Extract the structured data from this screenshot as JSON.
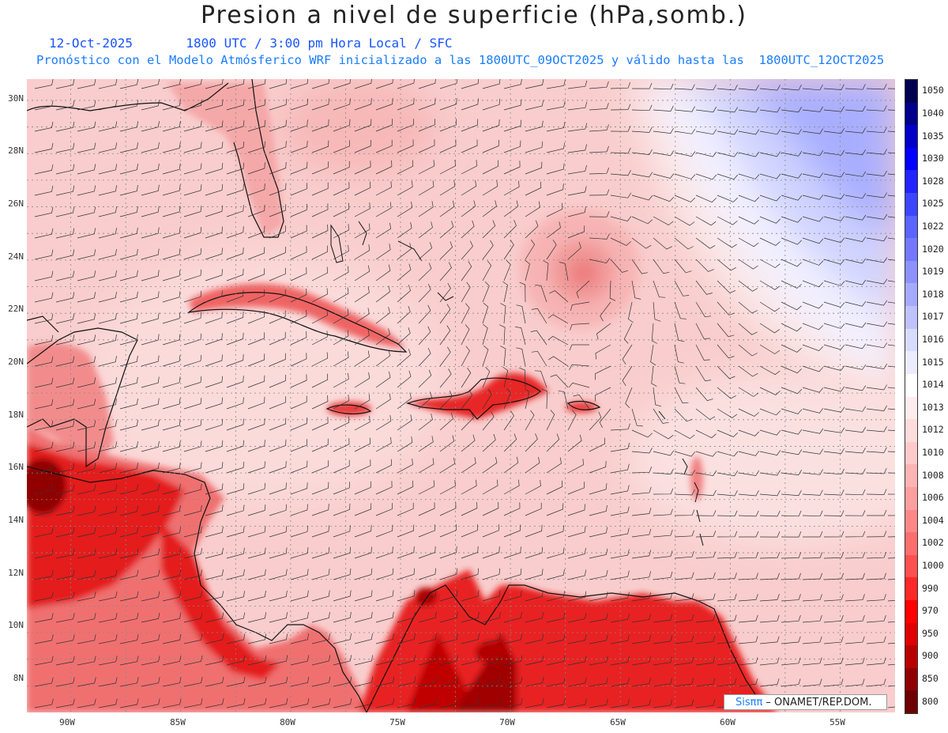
{
  "header": {
    "title": "Presion a nivel de superficie (hPa,somb.)",
    "date": "12-Oct-2025",
    "valid_time": "1800 UTC / 3:00 pm Hora Local / SFC",
    "subtitle": "Pronóstico con el Modelo Atmósferico WRF inicializado a las 1800UTC_09OCT2025 y válido hasta las  1800UTC_12OCT2025"
  },
  "map": {
    "lon_range": [
      -92,
      -52.5
    ],
    "lat_range": [
      7,
      30.8
    ],
    "lat_labels": [
      "30N",
      "28N",
      "26N",
      "24N",
      "22N",
      "20N",
      "18N",
      "16N",
      "14N",
      "12N",
      "10N",
      "8N"
    ],
    "lon_labels": [
      "90W",
      "85W",
      "80W",
      "75W",
      "70W",
      "65W",
      "60W",
      "55W"
    ],
    "low_center": {
      "lon": -66.6,
      "lat": 23.4
    },
    "colors": {
      "land_low": "#e00000",
      "ocean": "#f9cccc",
      "high": "#9aa2ff"
    }
  },
  "colorbar": {
    "levels": [
      "1050",
      "1040",
      "1035",
      "1030",
      "1028",
      "1025",
      "1022",
      "1020",
      "1019",
      "1018",
      "1017",
      "1016",
      "1015",
      "1014",
      "1013",
      "1012",
      "1010",
      "1008",
      "1006",
      "1004",
      "1002",
      "1000",
      "990",
      "970",
      "950",
      "900",
      "850",
      "800"
    ],
    "colors": [
      "#000050",
      "#00008c",
      "#0000c8",
      "#0000ff",
      "#2323ff",
      "#3c46ff",
      "#5a64ff",
      "#7378ff",
      "#8c91ff",
      "#a5aaff",
      "#bec3ff",
      "#d7dcff",
      "#ebedff",
      "#ffffff",
      "#ffecec",
      "#ffdcdc",
      "#ffcaca",
      "#ffb4b4",
      "#ff9e9e",
      "#ff8787",
      "#ff6e6e",
      "#ff5050",
      "#ff2828",
      "#ff0000",
      "#e00000",
      "#b80000",
      "#900000",
      "#6e0000"
    ]
  },
  "credit": {
    "brand": "Sisππ",
    "text": " – ONAMET/REP.DOM."
  }
}
